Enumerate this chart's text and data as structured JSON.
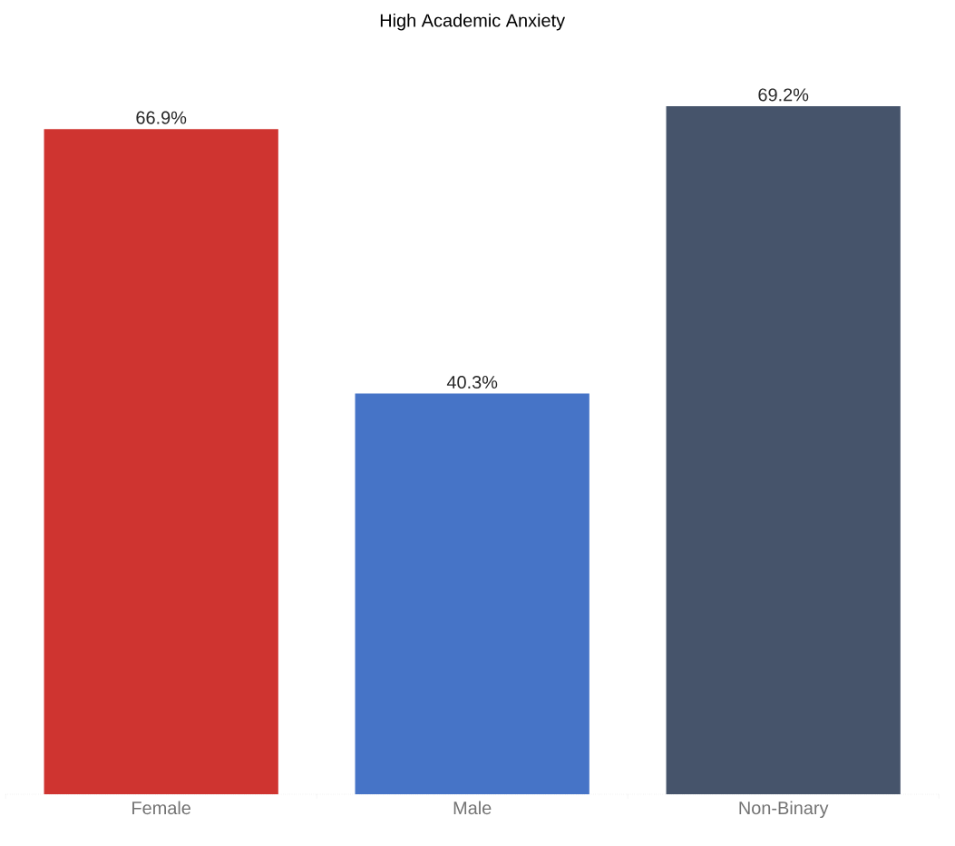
{
  "chart_data": {
    "type": "bar",
    "title": "High Academic Anxiety",
    "categories": [
      "Female",
      "Male",
      "Non-Binary"
    ],
    "values": [
      66.9,
      40.3,
      69.2
    ],
    "value_labels": [
      "66.9%",
      "40.3%",
      "69.2%"
    ],
    "colors": [
      "#cf3430",
      "#4674c7",
      "#46546b"
    ]
  }
}
